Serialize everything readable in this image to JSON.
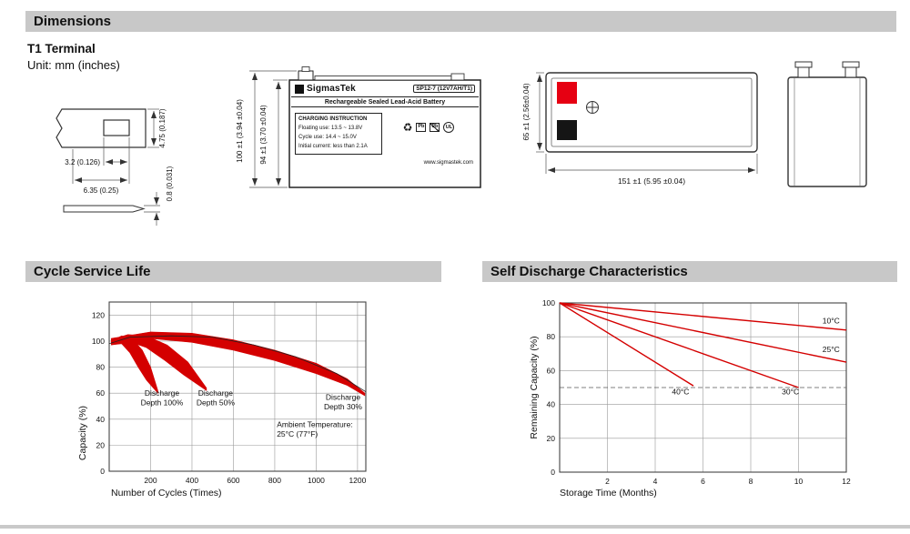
{
  "page": {
    "header": "Dimensions",
    "terminal_type": "T1 Terminal",
    "unit_note": "Unit: mm (inches)"
  },
  "colors": {
    "accent_red": "#d40000",
    "terminal_red": "#e60012",
    "terminal_black": "#151515",
    "header_gray": "#c8c8c8"
  },
  "icons": {
    "recycle": "♻"
  },
  "dimensions": {
    "terminal": {
      "height": "4.75 (0.187)",
      "hole_width": "3.2 (0.126)",
      "tab_width": "6.35 (0.25)",
      "thickness": "0.8 (0.031)"
    },
    "front_view": {
      "overall_height": "100 ±1 (3.94 ±0.04)",
      "case_height": "94 ±1 (3.70 ±0.04)"
    },
    "top_view": {
      "width": "65 ±1 (2.56±0.04)",
      "length": "151 ±1 (5.95 ±0.04)"
    }
  },
  "battery_label": {
    "brand": "SigmasTek",
    "model": "SP12-7 (12V7AH/T1)",
    "type": "Rechargeable Sealed Lead-Acid Battery",
    "charging_title": "CHARGING INSTRUCTION",
    "charging_lines": [
      "Floating use: 13.5 ~ 13.8V",
      "Cycle use: 14.4 ~ 15.0V",
      "Initial current: less than 2.1A"
    ],
    "website": "www.sigmastek.com",
    "pb_label": "Pb",
    "ul_label": "UL"
  },
  "chart_data": [
    {
      "id": "cycle-service-life",
      "type": "area",
      "title": "Cycle Service Life",
      "xlabel": "Number of Cycles (Times)",
      "ylabel": "Capacity (%)",
      "xlim": [
        0,
        1240
      ],
      "ylim": [
        0,
        130
      ],
      "xticks": [
        200,
        400,
        600,
        800,
        1000,
        1200
      ],
      "yticks": [
        0,
        20,
        40,
        60,
        80,
        100,
        120
      ],
      "grid": true,
      "line_color": "#d40000",
      "bands": [
        {
          "name": "Discharge Depth 100%",
          "upper": [
            [
              10,
              100
            ],
            [
              60,
              104
            ],
            [
              110,
              102
            ],
            [
              160,
              93
            ],
            [
              200,
              80
            ],
            [
              235,
              62
            ]
          ],
          "lower": [
            [
              10,
              97
            ],
            [
              60,
              98
            ],
            [
              100,
              91
            ],
            [
              140,
              80
            ],
            [
              180,
              70
            ],
            [
              235,
              60
            ]
          ]
        },
        {
          "name": "Discharge Depth 50%",
          "upper": [
            [
              10,
              101
            ],
            [
              90,
              105
            ],
            [
              180,
              104
            ],
            [
              280,
              97
            ],
            [
              380,
              84
            ],
            [
              470,
              64
            ]
          ],
          "lower": [
            [
              10,
              99
            ],
            [
              90,
              100
            ],
            [
              180,
              95
            ],
            [
              270,
              85
            ],
            [
              360,
              74
            ],
            [
              470,
              62
            ]
          ]
        },
        {
          "name": "Discharge Depth 30%",
          "upper": [
            [
              10,
              102
            ],
            [
              200,
              107
            ],
            [
              400,
              106
            ],
            [
              600,
              101
            ],
            [
              800,
              93
            ],
            [
              1000,
              83
            ],
            [
              1150,
              71
            ],
            [
              1235,
              60
            ]
          ],
          "lower": [
            [
              10,
              100
            ],
            [
              200,
              102
            ],
            [
              400,
              99
            ],
            [
              600,
              93
            ],
            [
              800,
              85
            ],
            [
              1000,
              75
            ],
            [
              1150,
              66
            ],
            [
              1235,
              58
            ]
          ]
        }
      ],
      "envelope": [
        [
          0,
          98
        ],
        [
          100,
          103
        ],
        [
          300,
          104
        ],
        [
          500,
          103
        ],
        [
          700,
          97
        ],
        [
          900,
          88
        ],
        [
          1100,
          75
        ],
        [
          1240,
          61
        ]
      ],
      "annotations": [
        {
          "lines": [
            "Discharge",
            "Depth 100%"
          ],
          "x": 255,
          "y": 58,
          "anchor": "middle"
        },
        {
          "lines": [
            "Discharge",
            "Depth 50%"
          ],
          "x": 514,
          "y": 58,
          "anchor": "middle"
        },
        {
          "lines": [
            "Discharge",
            "Depth 30%"
          ],
          "x": 1130,
          "y": 55,
          "anchor": "middle"
        },
        {
          "lines": [
            "Ambient Temperature:",
            "25°C (77°F)"
          ],
          "x": 810,
          "y": 34,
          "anchor": "start"
        }
      ]
    },
    {
      "id": "self-discharge",
      "type": "line",
      "title": "Self Discharge Characteristics",
      "xlabel": "Storage Time (Months)",
      "ylabel": "Remaining Capacity (%)",
      "xlim": [
        0,
        12
      ],
      "ylim": [
        0,
        100
      ],
      "xticks": [
        2,
        4,
        6,
        8,
        10,
        12
      ],
      "yticks": [
        0,
        20,
        40,
        60,
        80,
        100
      ],
      "grid": true,
      "line_color": "#d40000",
      "dashed_line_y": 50,
      "series": [
        {
          "name": "10°C",
          "points": [
            [
              0,
              100
            ],
            [
              12,
              84
            ]
          ],
          "label_x": 11.0,
          "label_y": 88
        },
        {
          "name": "25°C",
          "points": [
            [
              0,
              100
            ],
            [
              12,
              65
            ]
          ],
          "label_x": 11.0,
          "label_y": 71
        },
        {
          "name": "30°C",
          "points": [
            [
              0,
              100
            ],
            [
              10,
              50
            ]
          ],
          "label_x": 9.3,
          "label_y": 46
        },
        {
          "name": "40°C",
          "points": [
            [
              0,
              100
            ],
            [
              5.6,
              51
            ]
          ],
          "label_x": 4.7,
          "label_y": 46
        }
      ]
    }
  ]
}
